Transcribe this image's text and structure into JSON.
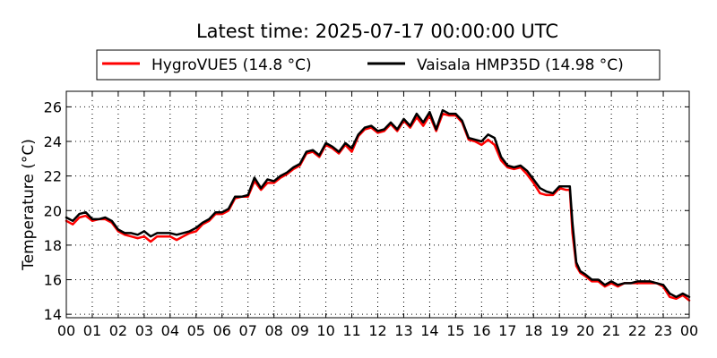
{
  "chart_data": {
    "type": "line",
    "title": "Latest time: 2025-07-17 00:00:00 UTC",
    "xlabel": "",
    "ylabel": "Temperature (°C)",
    "x_tick_labels": [
      "00",
      "01",
      "02",
      "03",
      "04",
      "05",
      "06",
      "07",
      "08",
      "09",
      "10",
      "11",
      "12",
      "13",
      "14",
      "15",
      "16",
      "17",
      "18",
      "19",
      "20",
      "21",
      "22",
      "23",
      "00"
    ],
    "xlim": [
      0,
      24
    ],
    "ylim": [
      13.8,
      26.9
    ],
    "y_ticks": [
      14,
      16,
      18,
      20,
      22,
      24,
      26
    ],
    "grid": true,
    "legend_position": "top",
    "series": [
      {
        "name": "HygroVUE5 (14.8 °C)",
        "color": "#ff0000",
        "x": [
          0.0,
          0.25,
          0.5,
          0.75,
          1.0,
          1.25,
          1.5,
          1.75,
          2.0,
          2.25,
          2.5,
          2.75,
          3.0,
          3.25,
          3.5,
          3.75,
          4.0,
          4.25,
          4.5,
          4.75,
          5.0,
          5.25,
          5.5,
          5.75,
          6.0,
          6.25,
          6.5,
          6.75,
          7.0,
          7.25,
          7.5,
          7.75,
          8.0,
          8.25,
          8.5,
          8.75,
          9.0,
          9.25,
          9.5,
          9.75,
          10.0,
          10.25,
          10.5,
          10.75,
          11.0,
          11.25,
          11.5,
          11.75,
          12.0,
          12.25,
          12.5,
          12.75,
          13.0,
          13.25,
          13.5,
          13.75,
          14.0,
          14.25,
          14.5,
          14.75,
          15.0,
          15.25,
          15.5,
          15.75,
          16.0,
          16.25,
          16.5,
          16.75,
          17.0,
          17.25,
          17.5,
          17.75,
          18.0,
          18.25,
          18.5,
          18.75,
          19.0,
          19.25,
          19.4,
          19.5,
          19.65,
          19.8,
          20.0,
          20.25,
          20.5,
          20.75,
          21.0,
          21.25,
          21.5,
          21.75,
          22.0,
          22.25,
          22.5,
          22.75,
          23.0,
          23.25,
          23.5,
          23.75,
          24.0
        ],
        "y": [
          19.4,
          19.2,
          19.6,
          19.7,
          19.4,
          19.5,
          19.5,
          19.3,
          18.8,
          18.6,
          18.5,
          18.4,
          18.5,
          18.2,
          18.5,
          18.5,
          18.5,
          18.3,
          18.5,
          18.7,
          18.8,
          19.2,
          19.4,
          19.8,
          19.8,
          20.0,
          20.7,
          20.8,
          20.8,
          21.7,
          21.2,
          21.6,
          21.6,
          21.9,
          22.1,
          22.4,
          22.6,
          23.3,
          23.4,
          23.1,
          23.8,
          23.6,
          23.3,
          23.8,
          23.4,
          24.3,
          24.7,
          24.8,
          24.5,
          24.6,
          25.0,
          24.6,
          25.2,
          24.8,
          25.4,
          24.9,
          25.5,
          24.6,
          25.6,
          25.5,
          25.5,
          25.1,
          24.1,
          24.0,
          23.8,
          24.1,
          23.8,
          22.9,
          22.5,
          22.4,
          22.5,
          22.1,
          21.6,
          21.0,
          20.9,
          20.9,
          21.3,
          21.2,
          21.2,
          18.7,
          16.8,
          16.4,
          16.2,
          15.9,
          15.9,
          15.6,
          15.8,
          15.6,
          15.8,
          15.8,
          15.8,
          15.8,
          15.8,
          15.8,
          15.6,
          15.0,
          14.9,
          15.1,
          14.8
        ]
      },
      {
        "name": "Vaisala HMP35D (14.98 °C)",
        "color": "#000000",
        "x": [
          0.0,
          0.25,
          0.5,
          0.75,
          1.0,
          1.25,
          1.5,
          1.75,
          2.0,
          2.25,
          2.5,
          2.75,
          3.0,
          3.25,
          3.5,
          3.75,
          4.0,
          4.25,
          4.5,
          4.75,
          5.0,
          5.25,
          5.5,
          5.75,
          6.0,
          6.25,
          6.5,
          6.75,
          7.0,
          7.25,
          7.5,
          7.75,
          8.0,
          8.25,
          8.5,
          8.75,
          9.0,
          9.25,
          9.5,
          9.75,
          10.0,
          10.25,
          10.5,
          10.75,
          11.0,
          11.25,
          11.5,
          11.75,
          12.0,
          12.25,
          12.5,
          12.75,
          13.0,
          13.25,
          13.5,
          13.75,
          14.0,
          14.25,
          14.5,
          14.75,
          15.0,
          15.25,
          15.5,
          15.75,
          16.0,
          16.25,
          16.5,
          16.75,
          17.0,
          17.25,
          17.5,
          17.75,
          18.0,
          18.25,
          18.5,
          18.75,
          19.0,
          19.25,
          19.4,
          19.5,
          19.65,
          19.8,
          20.0,
          20.25,
          20.5,
          20.75,
          21.0,
          21.25,
          21.5,
          21.75,
          22.0,
          22.25,
          22.5,
          22.75,
          23.0,
          23.25,
          23.5,
          23.75,
          24.0
        ],
        "y": [
          19.6,
          19.4,
          19.8,
          19.9,
          19.5,
          19.5,
          19.6,
          19.4,
          18.9,
          18.7,
          18.7,
          18.6,
          18.8,
          18.5,
          18.7,
          18.7,
          18.7,
          18.6,
          18.7,
          18.8,
          19.0,
          19.3,
          19.5,
          19.9,
          19.9,
          20.1,
          20.8,
          20.8,
          20.9,
          21.9,
          21.3,
          21.8,
          21.7,
          22.0,
          22.2,
          22.5,
          22.7,
          23.4,
          23.5,
          23.2,
          23.9,
          23.7,
          23.4,
          23.9,
          23.6,
          24.4,
          24.8,
          24.9,
          24.6,
          24.7,
          25.1,
          24.7,
          25.3,
          24.9,
          25.6,
          25.1,
          25.7,
          24.7,
          25.8,
          25.6,
          25.6,
          25.2,
          24.2,
          24.1,
          24.0,
          24.4,
          24.2,
          23.1,
          22.6,
          22.5,
          22.6,
          22.3,
          21.8,
          21.3,
          21.1,
          21.0,
          21.4,
          21.4,
          21.4,
          19.3,
          17.0,
          16.5,
          16.3,
          16.0,
          16.0,
          15.7,
          15.9,
          15.7,
          15.8,
          15.8,
          15.9,
          15.9,
          15.9,
          15.8,
          15.7,
          15.2,
          15.0,
          15.2,
          15.0
        ]
      }
    ]
  }
}
